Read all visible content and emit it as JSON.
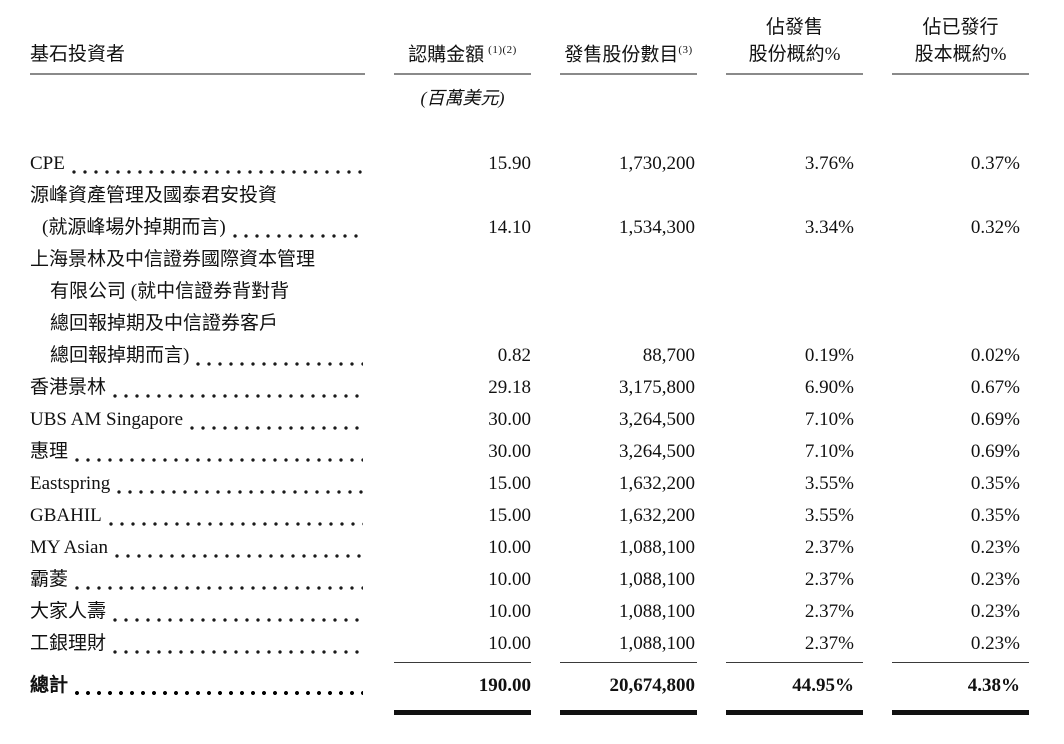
{
  "table": {
    "headers": {
      "investor": "基石投資者",
      "amount": "認購金額",
      "amount_sup": "(1)(2)",
      "amount_unit": "(百萬美元)",
      "shares": "發售股份數目",
      "shares_sup": "(3)",
      "pct_offer_line1": "佔發售",
      "pct_offer_line2": "股份概約%",
      "pct_issued_line1": "佔已發行",
      "pct_issued_line2": "股本概約%"
    },
    "rows": [
      {
        "name_lines": [
          "CPE"
        ],
        "amount": "15.90",
        "shares": "1,730,200",
        "pct_offer": "3.76%",
        "pct_issued": "0.37%"
      },
      {
        "name_lines": [
          "源峰資產管理及國泰君安投資",
          "(就源峰場外掉期而言)"
        ],
        "amount": "14.10",
        "shares": "1,534,300",
        "pct_offer": "3.34%",
        "pct_issued": "0.32%"
      },
      {
        "name_lines": [
          "上海景林及中信證券國際資本管理",
          "有限公司 (就中信證券背對背",
          "總回報掉期及中信證券客戶",
          "總回報掉期而言)"
        ],
        "amount": "0.82",
        "shares": "88,700",
        "pct_offer": "0.19%",
        "pct_issued": "0.02%"
      },
      {
        "name_lines": [
          "香港景林"
        ],
        "amount": "29.18",
        "shares": "3,175,800",
        "pct_offer": "6.90%",
        "pct_issued": "0.67%"
      },
      {
        "name_lines": [
          "UBS AM Singapore"
        ],
        "amount": "30.00",
        "shares": "3,264,500",
        "pct_offer": "7.10%",
        "pct_issued": "0.69%"
      },
      {
        "name_lines": [
          "惠理"
        ],
        "amount": "30.00",
        "shares": "3,264,500",
        "pct_offer": "7.10%",
        "pct_issued": "0.69%"
      },
      {
        "name_lines": [
          "Eastspring"
        ],
        "amount": "15.00",
        "shares": "1,632,200",
        "pct_offer": "3.55%",
        "pct_issued": "0.35%"
      },
      {
        "name_lines": [
          "GBAHIL"
        ],
        "amount": "15.00",
        "shares": "1,632,200",
        "pct_offer": "3.55%",
        "pct_issued": "0.35%"
      },
      {
        "name_lines": [
          "MY Asian"
        ],
        "amount": "10.00",
        "shares": "1,088,100",
        "pct_offer": "2.37%",
        "pct_issued": "0.23%"
      },
      {
        "name_lines": [
          "霸菱"
        ],
        "amount": "10.00",
        "shares": "1,088,100",
        "pct_offer": "2.37%",
        "pct_issued": "0.23%"
      },
      {
        "name_lines": [
          "大家人壽"
        ],
        "amount": "10.00",
        "shares": "1,088,100",
        "pct_offer": "2.37%",
        "pct_issued": "0.23%"
      },
      {
        "name_lines": [
          "工銀理財"
        ],
        "amount": "10.00",
        "shares": "1,088,100",
        "pct_offer": "2.37%",
        "pct_issued": "0.23%"
      }
    ],
    "total": {
      "label": "總計",
      "amount": "190.00",
      "shares": "20,674,800",
      "pct_offer": "44.95%",
      "pct_issued": "4.38%"
    }
  }
}
